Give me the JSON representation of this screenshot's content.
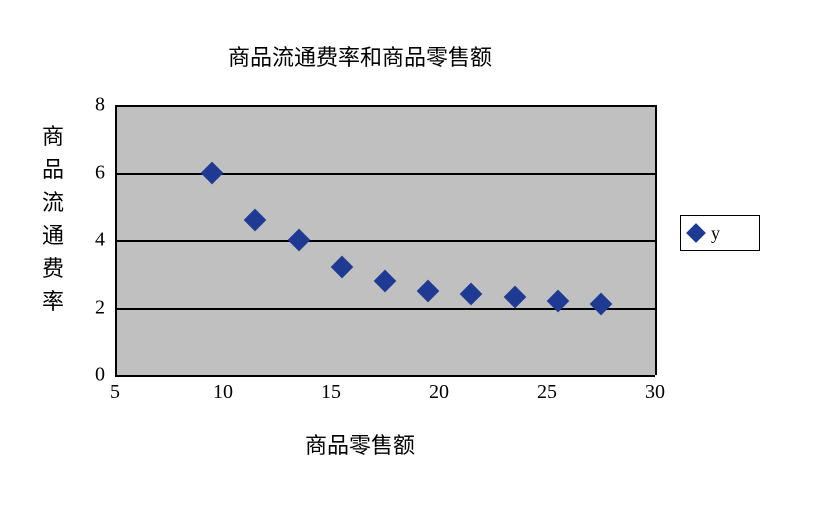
{
  "chart": {
    "type": "scatter",
    "title": "商品流通费率和商品零售额",
    "title_fontsize": 22,
    "xlabel": "商品零售额",
    "ylabel": "商品流通费率",
    "label_fontsize": 22,
    "xlim": [
      5,
      30
    ],
    "ylim": [
      0,
      8
    ],
    "xticks": [
      5,
      10,
      15,
      20,
      25,
      30
    ],
    "yticks": [
      0,
      2,
      4,
      6,
      8
    ],
    "background_color": "#ffffff",
    "plot_background_color": "#c0c0c0",
    "grid_color": "#000000",
    "tick_fontsize": 20,
    "marker_style": "diamond",
    "marker_size": 16,
    "series": [
      {
        "name": "y",
        "color": "#1f3a93",
        "x": [
          9.5,
          11.5,
          13.5,
          15.5,
          17.5,
          19.5,
          21.5,
          23.5,
          25.5,
          27.5
        ],
        "y": [
          6.0,
          4.6,
          4.0,
          3.2,
          2.8,
          2.5,
          2.4,
          2.3,
          2.2,
          2.1
        ]
      }
    ],
    "legend": {
      "position": "right",
      "border_color": "#000000",
      "background": "#ffffff",
      "prefix": "◆ "
    }
  }
}
